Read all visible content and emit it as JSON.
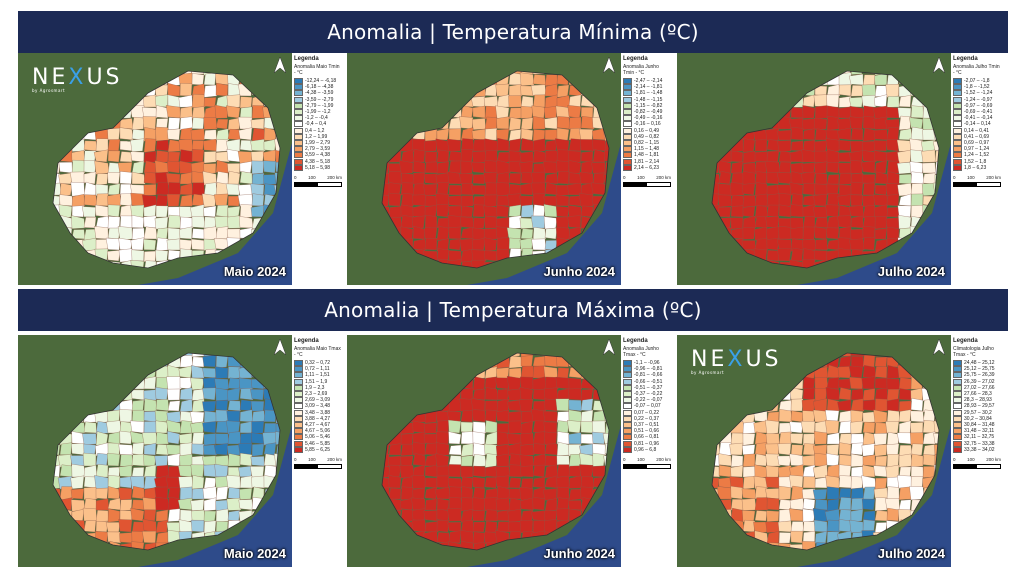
{
  "titles": {
    "min": "Anomalia | Temperatura Mínima (ºC)",
    "max": "Anomalia | Temperatura Máxima (ºC)"
  },
  "logo": {
    "brand_pre": "NE",
    "brand_x": "X",
    "brand_post": "US",
    "tagline": "by Agrosmart"
  },
  "common": {
    "legend_heading": "Legenda",
    "scale_0": "0",
    "scale_100": "100",
    "scale_200": "200 km"
  },
  "colors": {
    "banner": "#1c2a55",
    "ocean": "#2e4b8a",
    "land": "#4c6a3c",
    "hot": "#c81e1e"
  },
  "panels": [
    {
      "month": "Maio 2024",
      "legend_title": "Anomalia Maio Tmin - °C",
      "palette": "mixed_min_may",
      "items": [
        {
          "label": "-12,24 – -6,18",
          "color": "#2c7bb6"
        },
        {
          "label": "-6,18 – -4,38",
          "color": "#4a95c4"
        },
        {
          "label": "-4,38 – -3,59",
          "color": "#74b3d2"
        },
        {
          "label": "-3,59 – -2,79",
          "color": "#9fcbe0"
        },
        {
          "label": "-2,79 – -1,99",
          "color": "#c4e3b0"
        },
        {
          "label": "-1,99 – -1,2",
          "color": "#dcefc8"
        },
        {
          "label": "-1,2 – -0,4",
          "color": "#eef7e4"
        },
        {
          "label": "-0,4 – 0,4",
          "color": "#ffffff"
        },
        {
          "label": "0,4 – 1,2",
          "color": "#fff1df"
        },
        {
          "label": "1,2 – 1,99",
          "color": "#fddcb4"
        },
        {
          "label": "1,99 – 2,79",
          "color": "#fbc08a"
        },
        {
          "label": "2,79 – 3,59",
          "color": "#f5a064"
        },
        {
          "label": "3,59 – 4,38",
          "color": "#ec7b45"
        },
        {
          "label": "4,38 – 5,18",
          "color": "#e05532"
        },
        {
          "label": "5,18 – 5,98",
          "color": "#cc2a22"
        }
      ]
    },
    {
      "month": "Junho 2024",
      "legend_title": "Anomalia Junho Tmin - °C",
      "palette": "hot_min_jun",
      "items": [
        {
          "label": "-2,47 – -2,14",
          "color": "#2c7bb6"
        },
        {
          "label": "-2,14 – -1,81",
          "color": "#4a95c4"
        },
        {
          "label": "-1,81 – -1,48",
          "color": "#74b3d2"
        },
        {
          "label": "-1,48 – -1,15",
          "color": "#9fcbe0"
        },
        {
          "label": "-1,15 – -0,82",
          "color": "#c4e3b0"
        },
        {
          "label": "-0,82 – -0,49",
          "color": "#dcefc8"
        },
        {
          "label": "-0,49 – -0,16",
          "color": "#eef7e4"
        },
        {
          "label": "-0,16 – 0,16",
          "color": "#ffffff"
        },
        {
          "label": "0,16 – 0,49",
          "color": "#fff1df"
        },
        {
          "label": "0,49 – 0,82",
          "color": "#fddcb4"
        },
        {
          "label": "0,82 – 1,15",
          "color": "#fbc08a"
        },
        {
          "label": "1,15 – 1,48",
          "color": "#f5a064"
        },
        {
          "label": "1,48 – 1,81",
          "color": "#ec7b45"
        },
        {
          "label": "1,81 – 2,14",
          "color": "#e05532"
        },
        {
          "label": "2,14 – 6,23",
          "color": "#cc2a22"
        }
      ]
    },
    {
      "month": "Julho 2024",
      "legend_title": "Anomalia Julho Tmin - °C",
      "palette": "hot_min_jul",
      "items": [
        {
          "label": "-2,07 – -1,8",
          "color": "#2c7bb6"
        },
        {
          "label": "-1,8 – -1,52",
          "color": "#4a95c4"
        },
        {
          "label": "-1,52 – -1,24",
          "color": "#74b3d2"
        },
        {
          "label": "-1,24 – -0,97",
          "color": "#9fcbe0"
        },
        {
          "label": "-0,97 – -0,69",
          "color": "#c4e3b0"
        },
        {
          "label": "-0,69 – -0,41",
          "color": "#dcefc8"
        },
        {
          "label": "-0,41 – -0,14",
          "color": "#eef7e4"
        },
        {
          "label": "-0,14 – 0,14",
          "color": "#ffffff"
        },
        {
          "label": "0,14 – 0,41",
          "color": "#fff1df"
        },
        {
          "label": "0,41 – 0,69",
          "color": "#fddcb4"
        },
        {
          "label": "0,69 – 0,97",
          "color": "#fbc08a"
        },
        {
          "label": "0,97 – 1,24",
          "color": "#f5a064"
        },
        {
          "label": "1,24 – 1,52",
          "color": "#ec7b45"
        },
        {
          "label": "1,52 – 1,8",
          "color": "#e05532"
        },
        {
          "label": "1,8 – 6,23",
          "color": "#cc2a22"
        }
      ]
    },
    {
      "month": "Maio 2024",
      "legend_title": "Anomalia Maio Tmax - °C",
      "palette": "cool_max_may",
      "items": [
        {
          "label": "0,32 – 0,72",
          "color": "#2c7bb6"
        },
        {
          "label": "0,72 – 1,11",
          "color": "#4a95c4"
        },
        {
          "label": "1,11 – 1,51",
          "color": "#74b3d2"
        },
        {
          "label": "1,51 – 1,9",
          "color": "#9fcbe0"
        },
        {
          "label": "1,9 – 2,3",
          "color": "#c4e3b0"
        },
        {
          "label": "2,3 – 2,69",
          "color": "#dcefc8"
        },
        {
          "label": "2,69 – 3,09",
          "color": "#eef7e4"
        },
        {
          "label": "3,09 – 3,48",
          "color": "#ffffff"
        },
        {
          "label": "3,48 – 3,88",
          "color": "#fff1df"
        },
        {
          "label": "3,88 – 4,27",
          "color": "#fddcb4"
        },
        {
          "label": "4,27 – 4,67",
          "color": "#fbc08a"
        },
        {
          "label": "4,67 – 5,06",
          "color": "#f5a064"
        },
        {
          "label": "5,06 – 5,46",
          "color": "#ec7b45"
        },
        {
          "label": "5,46 – 5,85",
          "color": "#e05532"
        },
        {
          "label": "5,85 – 6,25",
          "color": "#cc2a22"
        }
      ]
    },
    {
      "month": "Junho 2024",
      "legend_title": "Anomalia Junho Tmax - °C",
      "palette": "hot_max_jun",
      "items": [
        {
          "label": "-1,1 – -0,96",
          "color": "#2c7bb6"
        },
        {
          "label": "-0,96 – -0,81",
          "color": "#4a95c4"
        },
        {
          "label": "-0,81 – -0,66",
          "color": "#74b3d2"
        },
        {
          "label": "-0,66 – -0,51",
          "color": "#9fcbe0"
        },
        {
          "label": "-0,51 – -0,37",
          "color": "#c4e3b0"
        },
        {
          "label": "-0,37 – -0,22",
          "color": "#dcefc8"
        },
        {
          "label": "-0,22 – -0,07",
          "color": "#eef7e4"
        },
        {
          "label": "-0,07 – 0,07",
          "color": "#ffffff"
        },
        {
          "label": "0,07 – 0,22",
          "color": "#fff1df"
        },
        {
          "label": "0,22 – 0,37",
          "color": "#fddcb4"
        },
        {
          "label": "0,37 – 0,51",
          "color": "#fbc08a"
        },
        {
          "label": "0,51 – 0,66",
          "color": "#f5a064"
        },
        {
          "label": "0,66 – 0,81",
          "color": "#ec7b45"
        },
        {
          "label": "0,81 – 0,96",
          "color": "#e05532"
        },
        {
          "label": "0,96 – 6,8",
          "color": "#cc2a22"
        }
      ]
    },
    {
      "month": "Julho 2024",
      "legend_title": "Climatologia Julho Tmax - °C",
      "palette": "mixed_max_jul",
      "items": [
        {
          "label": "24,48 – 25,12",
          "color": "#2c7bb6"
        },
        {
          "label": "25,12 – 25,75",
          "color": "#4a95c4"
        },
        {
          "label": "25,75 – 26,39",
          "color": "#74b3d2"
        },
        {
          "label": "26,39 – 27,02",
          "color": "#9fcbe0"
        },
        {
          "label": "27,02 – 27,66",
          "color": "#c4e3b0"
        },
        {
          "label": "27,66 – 28,3",
          "color": "#dcefc8"
        },
        {
          "label": "28,3 – 28,93",
          "color": "#eef7e4"
        },
        {
          "label": "28,93 – 29,57",
          "color": "#ffffff"
        },
        {
          "label": "29,57 – 30,2",
          "color": "#fff1df"
        },
        {
          "label": "30,2 – 30,84",
          "color": "#fddcb4"
        },
        {
          "label": "30,84 – 31,48",
          "color": "#fbc08a"
        },
        {
          "label": "31,48 – 32,11",
          "color": "#f5a064"
        },
        {
          "label": "32,11 – 32,75",
          "color": "#ec7b45"
        },
        {
          "label": "32,75 – 33,38",
          "color": "#e05532"
        },
        {
          "label": "33,38 – 34,02",
          "color": "#cc2a22"
        }
      ]
    }
  ]
}
